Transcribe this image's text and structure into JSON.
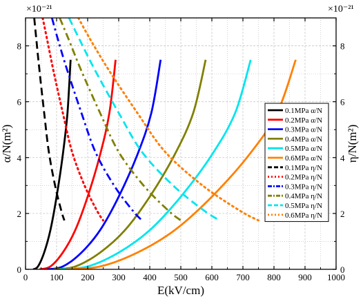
{
  "chart_data": {
    "type": "line",
    "x": [],
    "xlabel": "E(kV/cm)",
    "xlim": [
      0,
      1000
    ],
    "x_ticks": [
      "0",
      "100",
      "200",
      "300",
      "400",
      "500",
      "600",
      "700",
      "800",
      "900",
      "1000"
    ],
    "ylabel_left": "α/N(m²)",
    "ylabel_right": "η/N(m²)",
    "ylim": [
      0,
      9
    ],
    "y_ticks": [
      "0",
      "2",
      "4",
      "6",
      "8"
    ],
    "y_multiplier_left": "×10⁻²¹",
    "y_multiplier_right": "×10⁻²¹",
    "grid": true,
    "legend_position": "right",
    "colors": {
      "0.1MPa": "#000000",
      "0.2MPa": "#ff0000",
      "0.3MPa": "#0000ff",
      "0.4MPa": "#808000",
      "0.5MPa": "#00e5ee",
      "0.6MPa": "#ff8000"
    },
    "series": [
      {
        "name": "0.1MPa α/N",
        "color": "#000000",
        "style": "solid",
        "points": [
          [
            25,
            0
          ],
          [
            40,
            0.1
          ],
          [
            60,
            0.6
          ],
          [
            80,
            1.4
          ],
          [
            100,
            2.6
          ],
          [
            120,
            4.1
          ],
          [
            135,
            5.6
          ],
          [
            145,
            7.5
          ]
        ]
      },
      {
        "name": "0.2MPa α/N",
        "color": "#ff0000",
        "style": "solid",
        "points": [
          [
            45,
            0
          ],
          [
            80,
            0.1
          ],
          [
            120,
            0.6
          ],
          [
            160,
            1.4
          ],
          [
            200,
            2.6
          ],
          [
            240,
            4.1
          ],
          [
            270,
            5.6
          ],
          [
            290,
            7.5
          ]
        ]
      },
      {
        "name": "0.3MPa α/N",
        "color": "#0000ff",
        "style": "solid",
        "points": [
          [
            70,
            0
          ],
          [
            120,
            0.1
          ],
          [
            180,
            0.6
          ],
          [
            240,
            1.4
          ],
          [
            300,
            2.6
          ],
          [
            360,
            4.1
          ],
          [
            405,
            5.6
          ],
          [
            435,
            7.5
          ]
        ]
      },
      {
        "name": "0.4MPa α/N",
        "color": "#808000",
        "style": "solid",
        "points": [
          [
            90,
            0
          ],
          [
            160,
            0.1
          ],
          [
            240,
            0.6
          ],
          [
            320,
            1.4
          ],
          [
            400,
            2.6
          ],
          [
            480,
            4.1
          ],
          [
            540,
            5.6
          ],
          [
            580,
            7.5
          ]
        ]
      },
      {
        "name": "0.5MPa α/N",
        "color": "#00e5ee",
        "style": "solid",
        "points": [
          [
            110,
            0
          ],
          [
            200,
            0.1
          ],
          [
            300,
            0.6
          ],
          [
            400,
            1.4
          ],
          [
            500,
            2.6
          ],
          [
            600,
            4.1
          ],
          [
            675,
            5.6
          ],
          [
            725,
            7.5
          ]
        ]
      },
      {
        "name": "0.6MPa α/N",
        "color": "#ff8000",
        "style": "solid",
        "points": [
          [
            130,
            0
          ],
          [
            240,
            0.1
          ],
          [
            360,
            0.6
          ],
          [
            480,
            1.4
          ],
          [
            600,
            2.6
          ],
          [
            720,
            4.1
          ],
          [
            810,
            5.6
          ],
          [
            870,
            7.5
          ]
        ]
      },
      {
        "name": "0.1MPa η/N",
        "color": "#000000",
        "style": "dash",
        "points": [
          [
            28,
            9
          ],
          [
            35,
            8.2
          ],
          [
            45,
            7.1
          ],
          [
            60,
            5.6
          ],
          [
            75,
            4.2
          ],
          [
            95,
            3
          ],
          [
            115,
            2.1
          ],
          [
            125,
            1.75
          ]
        ]
      },
      {
        "name": "0.2MPa η/N",
        "color": "#ff0000",
        "style": "dot",
        "points": [
          [
            55,
            9
          ],
          [
            70,
            8.2
          ],
          [
            90,
            7.1
          ],
          [
            120,
            5.6
          ],
          [
            150,
            4.2
          ],
          [
            190,
            3
          ],
          [
            230,
            2.1
          ],
          [
            250,
            1.75
          ]
        ]
      },
      {
        "name": "0.3MPa η/N",
        "color": "#0000ff",
        "style": "dashdot",
        "points": [
          [
            85,
            9
          ],
          [
            105,
            8.2
          ],
          [
            135,
            7.1
          ],
          [
            180,
            5.6
          ],
          [
            225,
            4.2
          ],
          [
            285,
            3
          ],
          [
            345,
            2.1
          ],
          [
            375,
            1.75
          ]
        ]
      },
      {
        "name": "0.4MPa η/N",
        "color": "#808000",
        "style": "dashdot",
        "points": [
          [
            110,
            9
          ],
          [
            140,
            8.2
          ],
          [
            180,
            7.1
          ],
          [
            240,
            5.6
          ],
          [
            300,
            4.2
          ],
          [
            380,
            3
          ],
          [
            460,
            2.1
          ],
          [
            500,
            1.75
          ]
        ]
      },
      {
        "name": "0.5MPa η/N",
        "color": "#00e5ee",
        "style": "dash",
        "points": [
          [
            140,
            9
          ],
          [
            175,
            8.2
          ],
          [
            225,
            7.1
          ],
          [
            300,
            5.6
          ],
          [
            375,
            4.2
          ],
          [
            475,
            3
          ],
          [
            575,
            2.1
          ],
          [
            625,
            1.75
          ]
        ]
      },
      {
        "name": "0.6MPa η/N",
        "color": "#ff8000",
        "style": "dot",
        "points": [
          [
            170,
            9
          ],
          [
            210,
            8.2
          ],
          [
            270,
            7.1
          ],
          [
            360,
            5.6
          ],
          [
            450,
            4.2
          ],
          [
            570,
            3
          ],
          [
            690,
            2.1
          ],
          [
            750,
            1.75
          ]
        ]
      }
    ]
  }
}
